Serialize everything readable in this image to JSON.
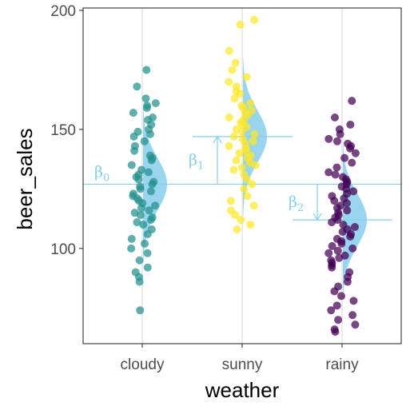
{
  "chart_data": {
    "type": "scatter",
    "xlabel": "weather",
    "ylabel": "beer_sales",
    "categories": [
      "cloudy",
      "sunny",
      "rainy"
    ],
    "ylim": [
      60,
      201
    ],
    "yticks": [
      100,
      150,
      200
    ],
    "grid": "vertical lines at categories",
    "colors": {
      "cloudy": "#21908C",
      "sunny": "#FDE725",
      "rainy": "#440154",
      "model": "#87CEEB"
    },
    "series": [
      {
        "category": "cloudy",
        "values": [
          175,
          168,
          163,
          161,
          160,
          159,
          157,
          155,
          154,
          152,
          150,
          149,
          148,
          147,
          145,
          143,
          141,
          139,
          138,
          137,
          135,
          133,
          132,
          131,
          130,
          129,
          128,
          127,
          126,
          125,
          124,
          123,
          122,
          121,
          120,
          119,
          118,
          117,
          116,
          115,
          114,
          113,
          112,
          111,
          110,
          108,
          106,
          104,
          102,
          100,
          98,
          95,
          92,
          90,
          88,
          86,
          74
        ]
      },
      {
        "category": "sunny",
        "values": [
          196,
          194,
          183,
          178,
          175,
          172,
          170,
          168,
          166,
          165,
          163,
          161,
          160,
          159,
          158,
          157,
          156,
          155,
          154,
          153,
          152,
          151,
          150,
          149,
          148,
          147,
          146,
          145,
          144,
          143,
          142,
          141,
          140,
          139,
          138,
          137,
          136,
          135,
          134,
          133,
          131,
          129,
          127,
          125,
          122,
          120,
          118,
          116,
          114,
          112,
          110,
          108
        ]
      },
      {
        "category": "rainy",
        "values": [
          162,
          155,
          152,
          150,
          148,
          146,
          145,
          144,
          143,
          142,
          140,
          138,
          136,
          134,
          132,
          131,
          130,
          129,
          128,
          127,
          126,
          125,
          124,
          123,
          122,
          121,
          120,
          119,
          118,
          117,
          116,
          115,
          114,
          113,
          112,
          111,
          110,
          109,
          108,
          107,
          106,
          105,
          104,
          103,
          102,
          101,
          100,
          99,
          98,
          97,
          96,
          95,
          94,
          93,
          92,
          90,
          88,
          86,
          84,
          82,
          80,
          78,
          76,
          74,
          72,
          70,
          68,
          66,
          65
        ]
      }
    ],
    "model": {
      "intercept": 127,
      "group_means": {
        "cloudy": 127,
        "sunny": 147,
        "rainy": 112
      },
      "density_sd": 11
    },
    "annotations": [
      {
        "symbol": "β",
        "subscript": "0"
      },
      {
        "symbol": "β",
        "subscript": "1"
      },
      {
        "symbol": "β",
        "subscript": "2"
      }
    ]
  }
}
